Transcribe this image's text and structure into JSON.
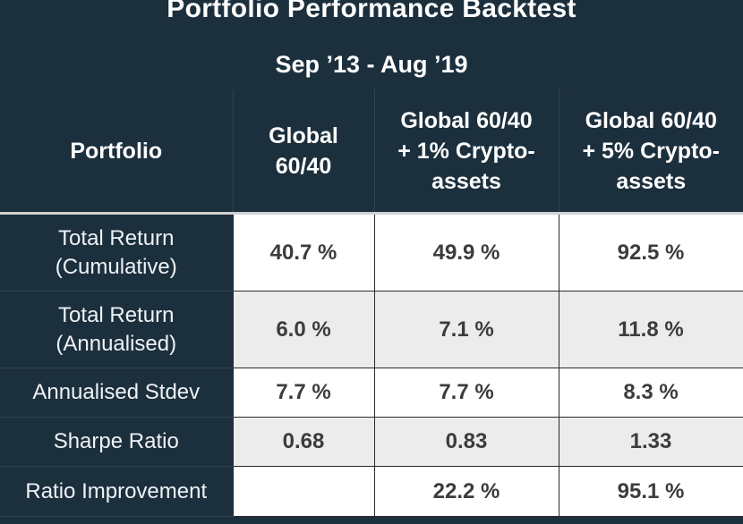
{
  "title": "Portfolio Performance Backtest",
  "subtitle": "Sep ’13 - Aug ’19",
  "colors": {
    "header_bg": "#1c2f3d",
    "row_white": "#ffffff",
    "row_grey": "#ececec",
    "value_text": "#3c3c3c"
  },
  "chart_data": {
    "type": "table",
    "title": "Portfolio Performance Backtest",
    "subtitle": "Sep ’13 - Aug ’19",
    "columns": [
      "Portfolio",
      "Global\n60/40",
      "Global 60/40\n+ 1% Crypto-\nassets",
      "Global 60/40\n+ 5% Crypto-\nassets"
    ],
    "rows": [
      {
        "label": "Total Return\n(Cumulative)",
        "values": [
          "40.7 %",
          "49.9 %",
          "92.5 %"
        ]
      },
      {
        "label": "Total Return\n(Annualised)",
        "values": [
          "6.0 %",
          "7.1 %",
          "11.8 %"
        ]
      },
      {
        "label": "Annualised Stdev",
        "values": [
          "7.7 %",
          "7.7 %",
          "8.3 %"
        ]
      },
      {
        "label": "Sharpe Ratio",
        "values": [
          "0.68",
          "0.83",
          "1.33"
        ]
      },
      {
        "label": "Ratio Improvement",
        "values": [
          "",
          "22.2 %",
          "95.1 %"
        ]
      }
    ]
  }
}
